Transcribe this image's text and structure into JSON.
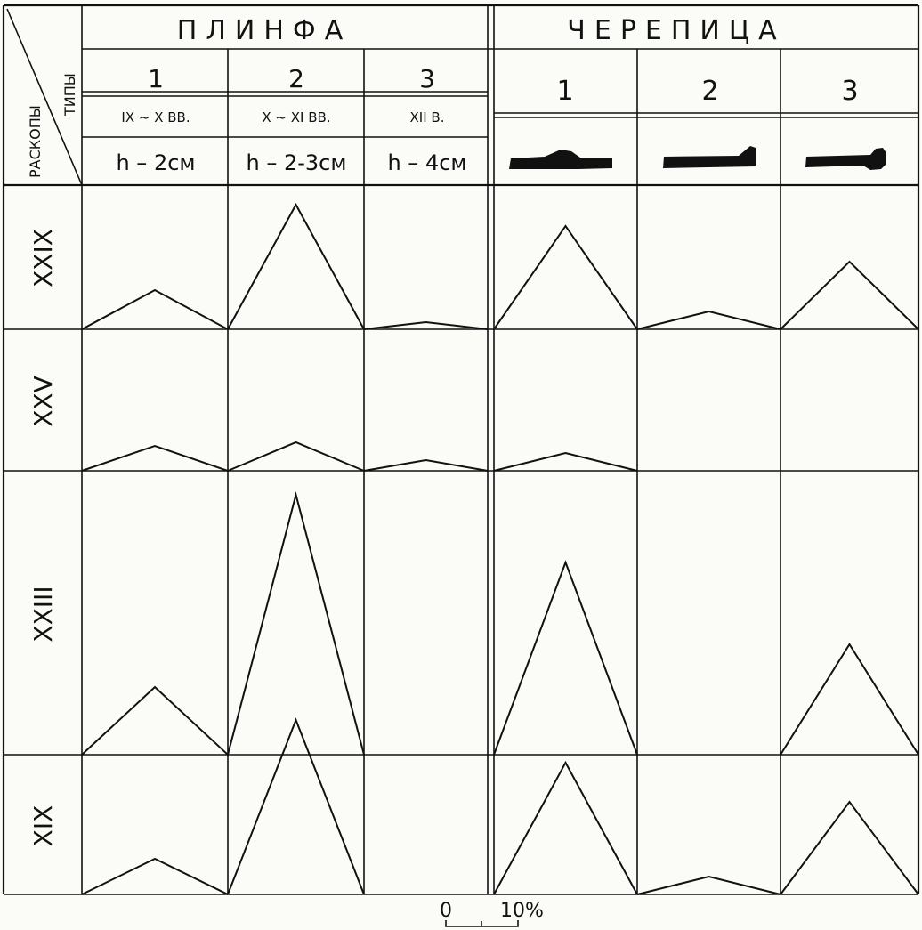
{
  "chart_data": {
    "type": "table",
    "corner": {
      "top_label": "ТИПЫ",
      "bottom_label": "РАСКОПЫ"
    },
    "groups": [
      {
        "name": "ПЛИНФА",
        "types": [
          {
            "number": "1",
            "century": "IX ~ X ВВ.",
            "height": "h – 2см"
          },
          {
            "number": "2",
            "century": "X ~ XI ВВ.",
            "height": "h – 2-3см"
          },
          {
            "number": "3",
            "century": "XII В.",
            "height": "h – 4см"
          }
        ]
      },
      {
        "name": "ЧЕРЕПИЦА",
        "types": [
          {
            "number": "1",
            "profile_icon": "tile-profile-1-icon"
          },
          {
            "number": "2",
            "profile_icon": "tile-profile-2-icon"
          },
          {
            "number": "3",
            "profile_icon": "tile-profile-3-icon"
          }
        ]
      }
    ],
    "rows": [
      {
        "name": "XXIX",
        "values": [
          11,
          35,
          2,
          29,
          5,
          19
        ]
      },
      {
        "name": "XXV",
        "values": [
          7,
          8,
          3,
          5,
          0,
          0
        ]
      },
      {
        "name": "XXIII",
        "values": [
          19,
          73,
          0,
          54,
          0,
          31
        ]
      },
      {
        "name": "XIX",
        "values": [
          10,
          49,
          0,
          37,
          5,
          26
        ]
      }
    ],
    "value_unit": "%",
    "scale_bar": {
      "start_label": "0",
      "end_label": "10%"
    }
  }
}
